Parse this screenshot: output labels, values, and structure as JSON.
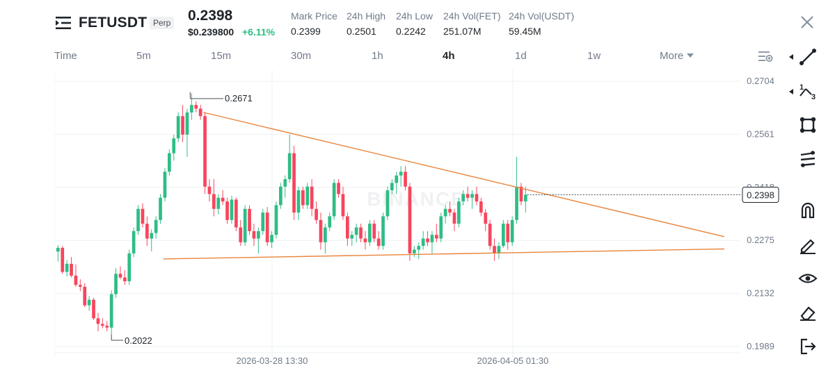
{
  "header": {
    "symbol": "FETUSDT",
    "contract_type": "Perp",
    "last_price": "0.2398",
    "usd_price": "$0.239800",
    "change": "+6.11%",
    "stats": [
      {
        "label": "Mark Price",
        "value": "0.2399"
      },
      {
        "label": "24h High",
        "value": "0.2501"
      },
      {
        "label": "24h Low",
        "value": "0.2242"
      },
      {
        "label": "24h Vol(FET)",
        "value": "251.07M"
      },
      {
        "label": "24h Vol(USDT)",
        "value": "59.45M"
      }
    ]
  },
  "timeframes": {
    "items": [
      "Time",
      "5m",
      "15m",
      "30m",
      "1h",
      "4h",
      "1d",
      "1w",
      "More"
    ],
    "active": "4h"
  },
  "chart_data": {
    "type": "candlestick",
    "watermark": "BINANCE",
    "y_ticks": [
      0.2704,
      0.2561,
      0.2418,
      0.2275,
      0.2132,
      0.1989
    ],
    "x_ticks": [
      "2026-03-28 13:30",
      "2026-04-05 01:30"
    ],
    "current_price": "0.2398",
    "high_marker": "0.2671",
    "low_marker": "0.2022",
    "candles": [
      [
        0.2245,
        0.2262,
        0.2218,
        0.2255
      ],
      [
        0.2255,
        0.226,
        0.2185,
        0.219
      ],
      [
        0.219,
        0.2222,
        0.2178,
        0.2212
      ],
      [
        0.2212,
        0.223,
        0.2175,
        0.218
      ],
      [
        0.218,
        0.221,
        0.215,
        0.2155
      ],
      [
        0.2155,
        0.217,
        0.2138,
        0.215
      ],
      [
        0.215,
        0.216,
        0.2095,
        0.21
      ],
      [
        0.21,
        0.2125,
        0.2085,
        0.2115
      ],
      [
        0.2115,
        0.212,
        0.206,
        0.2065
      ],
      [
        0.2065,
        0.208,
        0.203,
        0.205
      ],
      [
        0.205,
        0.2065,
        0.2038,
        0.2045
      ],
      [
        0.2045,
        0.2058,
        0.203,
        0.204
      ],
      [
        0.204,
        0.214,
        0.2022,
        0.213
      ],
      [
        0.213,
        0.22,
        0.212,
        0.2185
      ],
      [
        0.2185,
        0.2205,
        0.217,
        0.2175
      ],
      [
        0.2175,
        0.2195,
        0.2155,
        0.2165
      ],
      [
        0.2165,
        0.225,
        0.2155,
        0.224
      ],
      [
        0.224,
        0.231,
        0.223,
        0.23
      ],
      [
        0.23,
        0.237,
        0.229,
        0.236
      ],
      [
        0.236,
        0.2375,
        0.231,
        0.232
      ],
      [
        0.232,
        0.234,
        0.226,
        0.228
      ],
      [
        0.228,
        0.2305,
        0.2245,
        0.2295
      ],
      [
        0.2295,
        0.234,
        0.228,
        0.233
      ],
      [
        0.233,
        0.24,
        0.232,
        0.239
      ],
      [
        0.239,
        0.247,
        0.238,
        0.246
      ],
      [
        0.246,
        0.252,
        0.245,
        0.251
      ],
      [
        0.251,
        0.256,
        0.249,
        0.255
      ],
      [
        0.255,
        0.262,
        0.254,
        0.261
      ],
      [
        0.261,
        0.264,
        0.254,
        0.256
      ],
      [
        0.256,
        0.263,
        0.25,
        0.262
      ],
      [
        0.262,
        0.2671,
        0.26,
        0.264
      ],
      [
        0.264,
        0.265,
        0.262,
        0.263
      ],
      [
        0.263,
        0.264,
        0.26,
        0.261
      ],
      [
        0.261,
        0.262,
        0.24,
        0.242
      ],
      [
        0.242,
        0.244,
        0.238,
        0.24
      ],
      [
        0.24,
        0.244,
        0.234,
        0.236
      ],
      [
        0.236,
        0.24,
        0.2345,
        0.239
      ],
      [
        0.239,
        0.241,
        0.237,
        0.238
      ],
      [
        0.238,
        0.239,
        0.232,
        0.233
      ],
      [
        0.233,
        0.2395,
        0.232,
        0.2385
      ],
      [
        0.2385,
        0.239,
        0.23,
        0.231
      ],
      [
        0.231,
        0.233,
        0.226,
        0.227
      ],
      [
        0.227,
        0.237,
        0.226,
        0.236
      ],
      [
        0.236,
        0.237,
        0.229,
        0.23
      ],
      [
        0.23,
        0.232,
        0.226,
        0.228
      ],
      [
        0.228,
        0.231,
        0.224,
        0.23
      ],
      [
        0.23,
        0.236,
        0.229,
        0.235
      ],
      [
        0.235,
        0.2365,
        0.226,
        0.227
      ],
      [
        0.227,
        0.23,
        0.2255,
        0.229
      ],
      [
        0.229,
        0.238,
        0.228,
        0.237
      ],
      [
        0.237,
        0.243,
        0.236,
        0.242
      ],
      [
        0.242,
        0.245,
        0.239,
        0.244
      ],
      [
        0.244,
        0.256,
        0.243,
        0.251
      ],
      [
        0.251,
        0.253,
        0.233,
        0.235
      ],
      [
        0.235,
        0.242,
        0.233,
        0.241
      ],
      [
        0.241,
        0.242,
        0.236,
        0.237
      ],
      [
        0.237,
        0.243,
        0.236,
        0.242
      ],
      [
        0.242,
        0.244,
        0.234,
        0.236
      ],
      [
        0.236,
        0.238,
        0.232,
        0.233
      ],
      [
        0.233,
        0.235,
        0.225,
        0.227
      ],
      [
        0.227,
        0.232,
        0.224,
        0.231
      ],
      [
        0.231,
        0.235,
        0.23,
        0.234
      ],
      [
        0.234,
        0.244,
        0.233,
        0.243
      ],
      [
        0.243,
        0.244,
        0.239,
        0.24
      ],
      [
        0.24,
        0.242,
        0.233,
        0.234
      ],
      [
        0.234,
        0.235,
        0.226,
        0.228
      ],
      [
        0.228,
        0.23,
        0.226,
        0.229
      ],
      [
        0.229,
        0.232,
        0.227,
        0.231
      ],
      [
        0.231,
        0.232,
        0.227,
        0.228
      ],
      [
        0.228,
        0.23,
        0.225,
        0.227
      ],
      [
        0.227,
        0.233,
        0.226,
        0.232
      ],
      [
        0.232,
        0.233,
        0.227,
        0.228
      ],
      [
        0.228,
        0.23,
        0.225,
        0.226
      ],
      [
        0.226,
        0.235,
        0.225,
        0.234
      ],
      [
        0.234,
        0.242,
        0.233,
        0.241
      ],
      [
        0.241,
        0.244,
        0.24,
        0.243
      ],
      [
        0.243,
        0.246,
        0.24,
        0.245
      ],
      [
        0.245,
        0.2475,
        0.242,
        0.246
      ],
      [
        0.246,
        0.2475,
        0.241,
        0.242
      ],
      [
        0.242,
        0.243,
        0.222,
        0.224
      ],
      [
        0.224,
        0.226,
        0.223,
        0.225
      ],
      [
        0.225,
        0.227,
        0.2225,
        0.226
      ],
      [
        0.226,
        0.23,
        0.225,
        0.228
      ],
      [
        0.228,
        0.23,
        0.226,
        0.227
      ],
      [
        0.227,
        0.23,
        0.224,
        0.229
      ],
      [
        0.229,
        0.232,
        0.227,
        0.228
      ],
      [
        0.228,
        0.235,
        0.227,
        0.234
      ],
      [
        0.234,
        0.237,
        0.232,
        0.236
      ],
      [
        0.236,
        0.238,
        0.234,
        0.235
      ],
      [
        0.235,
        0.236,
        0.23,
        0.232
      ],
      [
        0.232,
        0.239,
        0.231,
        0.238
      ],
      [
        0.238,
        0.241,
        0.237,
        0.24
      ],
      [
        0.24,
        0.242,
        0.238,
        0.239
      ],
      [
        0.239,
        0.241,
        0.236,
        0.24
      ],
      [
        0.24,
        0.242,
        0.237,
        0.238
      ],
      [
        0.238,
        0.239,
        0.234,
        0.235
      ],
      [
        0.235,
        0.236,
        0.23,
        0.232
      ],
      [
        0.232,
        0.233,
        0.225,
        0.226
      ],
      [
        0.226,
        0.228,
        0.222,
        0.224
      ],
      [
        0.224,
        0.227,
        0.2225,
        0.226
      ],
      [
        0.226,
        0.233,
        0.2255,
        0.232
      ],
      [
        0.232,
        0.233,
        0.225,
        0.227
      ],
      [
        0.227,
        0.234,
        0.226,
        0.233
      ],
      [
        0.233,
        0.25,
        0.232,
        0.242
      ],
      [
        0.242,
        0.243,
        0.237,
        0.238
      ],
      [
        0.238,
        0.242,
        0.235,
        0.2398
      ]
    ],
    "colors": {
      "up": "#2ebd85",
      "down": "#f6465d",
      "trendline": "#e8833a",
      "grid": "#eef0f2",
      "axis_text": "#707a8a"
    },
    "trendlines": [
      {
        "from_index": 33,
        "from_price": 0.262,
        "to_index": 150,
        "to_price": 0.2285
      },
      {
        "from_index": 24,
        "from_price": 0.2225,
        "to_index": 150,
        "to_price": 0.2252
      }
    ]
  },
  "toolbar": {
    "tools": [
      "line-tool-icon",
      "fib-tool-icon",
      "shape-tool-icon",
      "channel-tool-icon",
      "magnet-icon",
      "pencil-icon",
      "eye-icon",
      "eraser-icon",
      "exit-icon"
    ]
  }
}
